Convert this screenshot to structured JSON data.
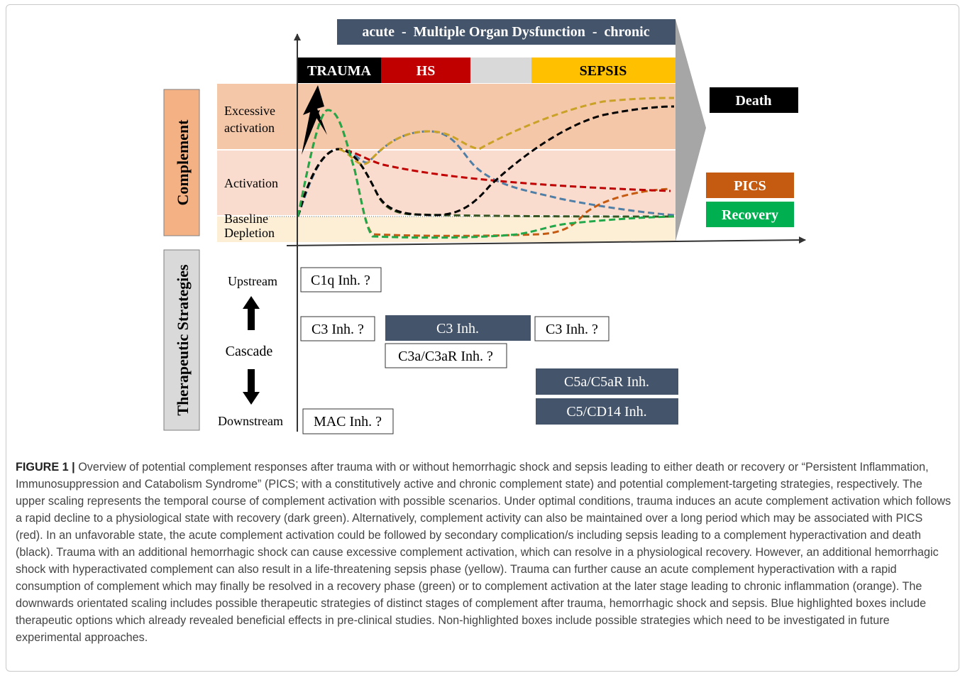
{
  "timeline_banner": "acute  -  Multiple Organ Dysfunction  -  chronic",
  "phases": [
    {
      "label": "TRAUMA",
      "color": "#000000",
      "text_color": "#ffffff"
    },
    {
      "label": "HS",
      "color": "#c00000",
      "text_color": "#ffffff"
    },
    {
      "label": "",
      "color": "#d9d9d9",
      "text_color": "#000000"
    },
    {
      "label": "SEPSIS",
      "color": "#ffc000",
      "text_color": "#000000"
    }
  ],
  "complement_label": "Complement",
  "therapeutic_label": "Therapeutic Strategies",
  "zones": {
    "excessive": "Excessive activation",
    "activation": "Activation",
    "baseline": "Baseline",
    "depletion": "Depletion"
  },
  "outcomes": {
    "death": "Death",
    "pics": "PICS",
    "recovery": "Recovery"
  },
  "cascade": {
    "upstream": "Upstream",
    "cascade": "Cascade",
    "downstream": "Downstream"
  },
  "strategies": {
    "c1q": "C1q Inh. ?",
    "c3_q_left": "C3 Inh. ?",
    "c3": "C3 Inh.",
    "c3_q_right": "C3 Inh. ?",
    "c3a": "C3a/C3aR Inh. ?",
    "c5a": "C5a/C5aR Inh.",
    "c5cd14": "C5/CD14 Inh.",
    "mac": "MAC Inh. ?"
  },
  "curve_colors": {
    "dark_green": "#375623",
    "red": "#c00000",
    "black": "#000000",
    "yellow": "#c9a227",
    "blue": "#4f7fa6",
    "green": "#22a84a",
    "orange": "#c55a11"
  },
  "caption": {
    "label": "FIGURE 1 |",
    "text": "Overview of potential complement responses after trauma with or without hemorrhagic shock and sepsis leading to either death or recovery or “Persistent Inflammation, Immunosuppression and Catabolism Syndrome” (PICS; with a constitutively active and chronic complement state) and potential complement-targeting strategies, respectively. The upper scaling represents the temporal course of complement activation with possible scenarios. Under optimal conditions, trauma induces an acute complement activation which follows a rapid decline to a physiological state with recovery (dark green). Alternatively, complement activity can also be maintained over a long period which may be associated with PICS (red). In an unfavorable state, the acute complement activation could be followed by secondary complication/s including sepsis leading to a complement hyperactivation and death (black). Trauma with an additional hemorrhagic shock can cause excessive complement activation, which can resolve in a physiological recovery. However, an additional hemorrhagic shock with hyperactivated complement can also result in a life-threatening sepsis phase (yellow). Trauma can further cause an acute complement hyperactivation with a rapid consumption of complement which may finally be resolved in a recovery phase (green) or to complement activation at the later stage leading to chronic inflammation (orange). The downwards orientated scaling includes possible therapeutic strategies of distinct stages of complement after trauma, hemorrhagic shock and sepsis. Blue highlighted boxes include therapeutic options which already revealed beneficial effects in pre-clinical studies. Non-highlighted boxes include possible strategies which need to be investigated in future experimental approaches."
  }
}
